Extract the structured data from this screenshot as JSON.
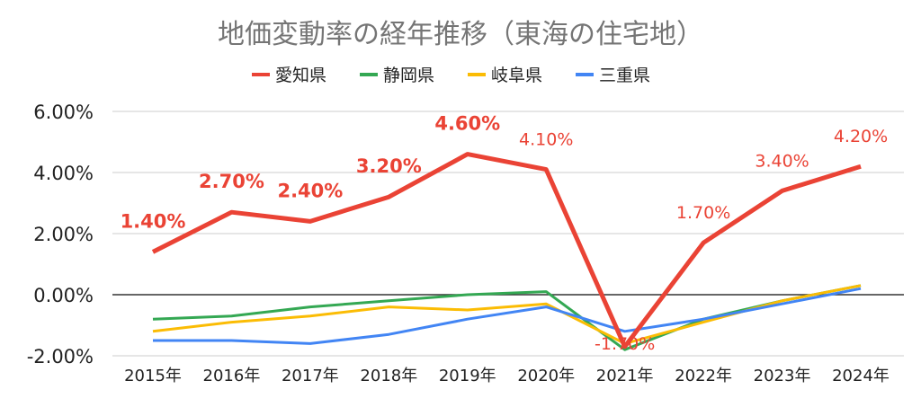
{
  "chart_data": {
    "type": "line",
    "title": "地価変動率の経年推移（東海の住宅地）",
    "categories": [
      "2015年",
      "2016年",
      "2017年",
      "2018年",
      "2019年",
      "2020年",
      "2021年",
      "2022年",
      "2023年",
      "2024年"
    ],
    "ylim": [
      -2,
      6
    ],
    "yticks": [
      -2,
      0,
      2,
      4,
      6
    ],
    "ytick_labels": [
      "-2.00%",
      "0.00%",
      "2.00%",
      "4.00%",
      "6.00%"
    ],
    "grid": true,
    "legend_position": "top",
    "series": [
      {
        "name": "愛知県",
        "color": "#ea4335",
        "values": [
          1.4,
          2.7,
          2.4,
          3.2,
          4.6,
          4.1,
          -1.7,
          1.7,
          3.4,
          4.2
        ],
        "data_labels": [
          "1.40%",
          "2.70%",
          "2.40%",
          "3.20%",
          "4.60%",
          "4.10%",
          "-1.70%",
          "1.70%",
          "3.40%",
          "4.20%"
        ],
        "bold_labels": [
          true,
          true,
          true,
          true,
          true,
          false,
          false,
          false,
          false,
          false
        ]
      },
      {
        "name": "静岡県",
        "color": "#34a853",
        "values": [
          -0.8,
          -0.7,
          -0.4,
          -0.2,
          0.0,
          0.1,
          -1.8,
          -0.8,
          -0.2,
          0.3
        ]
      },
      {
        "name": "岐阜県",
        "color": "#fbbc04",
        "values": [
          -1.2,
          -0.9,
          -0.7,
          -0.4,
          -0.5,
          -0.3,
          -1.6,
          -0.9,
          -0.2,
          0.3
        ]
      },
      {
        "name": "三重県",
        "color": "#4285f4",
        "values": [
          -1.5,
          -1.5,
          -1.6,
          -1.3,
          -0.8,
          -0.4,
          -1.2,
          -0.8,
          -0.3,
          0.2
        ]
      }
    ]
  }
}
